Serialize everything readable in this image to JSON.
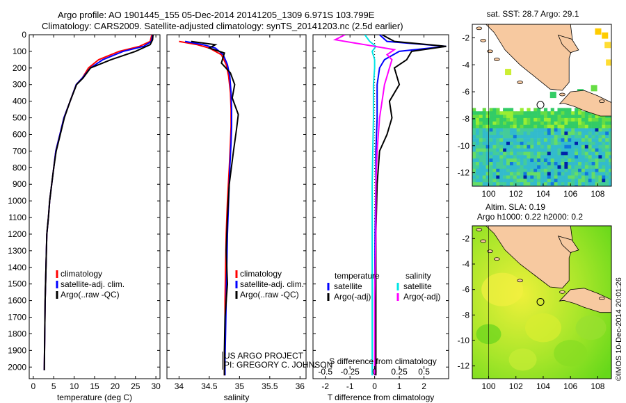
{
  "header": {
    "line1": "Argo profile: AO 1901445_155 05-Dec-2014 20141205_1309 6.971S 103.799E",
    "line2": "Climatology: CARS2009. Satellite-adjusted climatology: synTS_20141203.nc (2.5d earlier)"
  },
  "side_label": "©IMOS 10-Dec-2014 20:01:26",
  "credits": {
    "line1": "US ARGO PROJECT",
    "line2": "PI: GREGORY C. JOHNSON"
  },
  "colors": {
    "climatology": "#ff0000",
    "satellite": "#0000ff",
    "argo": "#000000",
    "cyan": "#00e5e5",
    "magenta": "#ff00ff",
    "land": "#f7c9a0"
  },
  "chart_data": [
    {
      "id": "temperature",
      "type": "line",
      "xlabel": "temperature (deg C)",
      "ylabel": "",
      "xlim": [
        -1,
        31
      ],
      "ylim": [
        2070,
        0
      ],
      "xticks": [
        0,
        5,
        10,
        15,
        20,
        25,
        30
      ],
      "yticks": [
        0,
        100,
        200,
        300,
        400,
        500,
        600,
        700,
        800,
        900,
        1000,
        1100,
        1200,
        1300,
        1400,
        1500,
        1600,
        1700,
        1800,
        1900,
        2000
      ],
      "legend": [
        "climatology",
        "satellite-adj. clim.",
        "Argo(..raw -QC)"
      ],
      "series": [
        {
          "name": "climatology",
          "color": "#ff0000",
          "x": [
            29,
            28.6,
            26,
            21,
            16,
            13.5,
            12,
            10.5,
            9,
            7.5,
            6.5,
            5.5,
            5,
            4.5,
            4,
            3.7,
            3.3,
            3.1,
            2.9,
            2.8,
            2.7
          ],
          "y": [
            0,
            40,
            70,
            100,
            150,
            200,
            260,
            300,
            400,
            500,
            600,
            700,
            800,
            900,
            1000,
            1100,
            1200,
            1400,
            1600,
            1800,
            2020
          ]
        },
        {
          "name": "satellite-adj. clim.",
          "color": "#0000ff",
          "x": [
            29.2,
            28.9,
            27,
            22,
            17,
            14,
            12,
            10.5,
            9,
            7.5,
            6.5,
            5.5,
            5,
            4.5,
            4,
            3.7,
            3.3,
            3.1,
            2.9,
            2.8,
            2.7
          ],
          "y": [
            0,
            40,
            70,
            100,
            150,
            200,
            260,
            300,
            400,
            500,
            600,
            700,
            800,
            900,
            1000,
            1100,
            1200,
            1400,
            1600,
            1800,
            2020
          ]
        },
        {
          "name": "Argo(..raw -QC)",
          "color": "#000000",
          "x": [
            29.3,
            29.2,
            28.6,
            25,
            19,
            14,
            12.2,
            10.6,
            9,
            7.6,
            6.6,
            5.6,
            5,
            4.5,
            4,
            3.7,
            3.3,
            3.1,
            2.9,
            2.8,
            2.7
          ],
          "y": [
            0,
            30,
            60,
            100,
            150,
            200,
            260,
            300,
            400,
            500,
            600,
            700,
            800,
            900,
            1000,
            1100,
            1200,
            1400,
            1600,
            1800,
            2020
          ]
        }
      ]
    },
    {
      "id": "salinity",
      "type": "line",
      "xlabel": "salinity",
      "ylabel": "",
      "xlim": [
        33.8,
        36.1
      ],
      "ylim": [
        2070,
        0
      ],
      "xticks": [
        34,
        34.5,
        35,
        35.5,
        36
      ],
      "legend": [
        "climatology",
        "satellite-adj. clim.",
        "Argo(..raw -QC)"
      ],
      "series": [
        {
          "name": "climatology",
          "color": "#ff0000",
          "x": [
            34.0,
            34.3,
            34.5,
            34.7,
            34.78,
            34.82,
            34.85,
            34.86,
            34.86,
            34.85,
            34.83,
            34.8,
            34.78,
            34.77,
            34.76,
            34.76,
            34.75,
            34.75
          ],
          "y": [
            40,
            60,
            80,
            120,
            180,
            250,
            350,
            450,
            550,
            650,
            800,
            1000,
            1200,
            1400,
            1600,
            1800,
            1950,
            2050
          ]
        },
        {
          "name": "satellite-adj. clim.",
          "color": "#0000ff",
          "x": [
            34.1,
            34.4,
            34.6,
            34.73,
            34.8,
            34.84,
            34.86,
            34.87,
            34.87,
            34.86,
            34.84,
            34.82,
            34.8,
            34.79,
            34.78,
            34.77,
            34.76,
            34.76
          ],
          "y": [
            40,
            60,
            80,
            120,
            180,
            250,
            350,
            450,
            550,
            650,
            800,
            1000,
            1200,
            1400,
            1600,
            1800,
            1950,
            2050
          ]
        },
        {
          "name": "Argo(..raw -QC)",
          "color": "#000000",
          "x": [
            34.2,
            34.6,
            34.5,
            34.75,
            34.7,
            34.85,
            34.92,
            34.88,
            34.98,
            34.95,
            34.9,
            34.83,
            34.8,
            34.78,
            34.8,
            34.76,
            34.75,
            34.75
          ],
          "y": [
            40,
            60,
            80,
            110,
            170,
            230,
            300,
            380,
            480,
            570,
            700,
            900,
            1100,
            1300,
            1500,
            1700,
            1900,
            2050
          ]
        }
      ]
    },
    {
      "id": "difference",
      "type": "line",
      "xlabel": "T difference from climatology",
      "xlabel_top": "S difference from climatology",
      "xlim": [
        -2.5,
        3
      ],
      "ylim": [
        2070,
        0
      ],
      "xticks": [
        -2,
        -1,
        0,
        1,
        2
      ],
      "xticks_S": [
        -0.5,
        -0.25,
        0,
        0.25,
        0.5
      ],
      "legend_titles": [
        "temperature",
        "salinity"
      ],
      "legend": [
        "satellite",
        "Argo(-adj)",
        "satellite",
        "Argo(-adj)"
      ],
      "series": [
        {
          "name": "satellite",
          "group": "temperature",
          "color": "#0000ff",
          "x": [
            0.2,
            0.5,
            2.9,
            1,
            0.4,
            0.2,
            0.1,
            0.1,
            0.05,
            0.05,
            0.02,
            0,
            0
          ],
          "y": [
            0,
            40,
            70,
            100,
            150,
            200,
            300,
            500,
            700,
            900,
            1200,
            1600,
            2050
          ]
        },
        {
          "name": "Argo(-adj)",
          "group": "temperature",
          "color": "#000000",
          "x": [
            0.3,
            0.8,
            2.9,
            1.5,
            1.3,
            0.8,
            1.0,
            0.6,
            0.7,
            0.5,
            0.2,
            0.1,
            0.05,
            0.05,
            0.05
          ],
          "y": [
            0,
            40,
            70,
            100,
            150,
            200,
            300,
            400,
            500,
            600,
            700,
            900,
            1200,
            1600,
            2050
          ]
        },
        {
          "name": "satellite",
          "group": "salinity",
          "color": "#00e5e5",
          "x": [
            -0.4,
            -0.2,
            0.05,
            -0.1,
            0,
            0,
            -0.05,
            -0.05,
            -0.1,
            -0.1,
            -0.1
          ],
          "y": [
            0,
            40,
            70,
            100,
            150,
            200,
            300,
            500,
            900,
            1500,
            2050
          ]
        },
        {
          "name": "Argo(-adj)",
          "group": "salinity",
          "color": "#ff00ff",
          "x": [
            -1.2,
            -1.6,
            -0.4,
            0.8,
            0.5,
            0.7,
            0.6,
            0.5,
            0.4,
            0.3,
            0.2,
            0.1,
            0.05,
            0.05,
            0,
            0
          ],
          "y": [
            0,
            30,
            60,
            90,
            120,
            150,
            200,
            250,
            300,
            400,
            500,
            700,
            900,
            1200,
            1600,
            2050
          ]
        }
      ]
    }
  ],
  "maps": [
    {
      "id": "sst",
      "title": "sat. SST: 28.7 Argo: 29.1",
      "lon": [
        98.8,
        109
      ],
      "lat": [
        -13,
        -1
      ],
      "xticks": [
        100,
        102,
        104,
        106,
        108
      ],
      "yticks": [
        -2,
        -4,
        -6,
        -8,
        -10,
        -12
      ],
      "float": {
        "lon": 103.8,
        "lat": -6.97
      }
    },
    {
      "id": "sla",
      "title1": "Altim. SLA: 0.19",
      "title2": "Argo h1000: 0.22 h2000: 0.2",
      "lon": [
        98.8,
        109
      ],
      "lat": [
        -13,
        -1
      ],
      "xticks": [
        100,
        102,
        104,
        106,
        108
      ],
      "yticks": [
        -2,
        -4,
        -6,
        -8,
        -10,
        -12
      ],
      "float": {
        "lon": 103.8,
        "lat": -6.97
      }
    }
  ]
}
